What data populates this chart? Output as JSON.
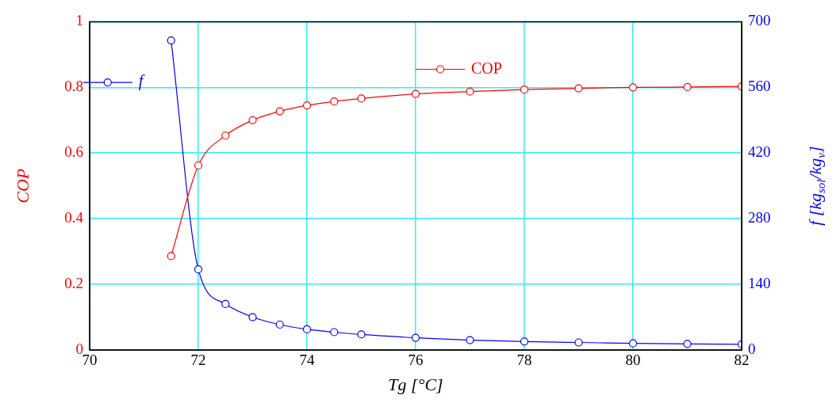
{
  "chart_data": {
    "type": "line",
    "xlabel": "Tg [°C]",
    "ylabel": "COP",
    "y2label": "f [kg$_{sol}$/kg$_{v}$]",
    "x": [
      71.5,
      72,
      72.5,
      73,
      73.5,
      74,
      74.5,
      75,
      76,
      77,
      78,
      79,
      80,
      81,
      82
    ],
    "series": [
      {
        "name": "COP",
        "color": "#ff0000",
        "values": [
          0.286,
          0.562,
          0.653,
          0.7,
          0.727,
          0.745,
          0.757,
          0.766,
          0.78,
          0.787,
          0.793,
          0.797,
          0.8,
          0.801,
          0.803
        ]
      },
      {
        "name": "f",
        "color": "#0000ff",
        "axis": "y2",
        "values": [
          660,
          172,
          98,
          70,
          54,
          44,
          38,
          33,
          26,
          21,
          18,
          16,
          14,
          13,
          12
        ]
      }
    ],
    "xlim": [
      70,
      82
    ],
    "xticks": [
      70,
      72,
      74,
      76,
      78,
      80,
      82
    ],
    "ylim": [
      0,
      1
    ],
    "yticks": [
      0,
      0.2,
      0.4,
      0.6,
      0.8,
      1
    ],
    "y2lim": [
      0,
      700
    ],
    "y2ticks": [
      0,
      140,
      280,
      420,
      560,
      700
    ],
    "grid": true,
    "legend": "top",
    "marker": "circle",
    "line_style": "solid"
  }
}
